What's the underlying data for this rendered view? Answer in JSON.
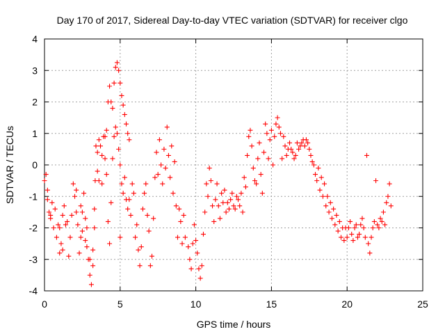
{
  "chart_data": {
    "type": "scatter",
    "title": "Day 170 of 2017, Sidereal Day-to-day VTEC variation (SDTVAR) for receiver clgo",
    "xlabel": "GPS time / hours",
    "ylabel": "SDTVAR / TECUs",
    "xlim": [
      0,
      25
    ],
    "ylim": [
      -4,
      4
    ],
    "x_ticks": [
      0,
      5,
      10,
      15,
      20,
      25
    ],
    "y_ticks": [
      -4,
      -3,
      -2,
      -1,
      0,
      1,
      2,
      3,
      4
    ],
    "grid": true,
    "marker": "+",
    "color": "#ff0000",
    "series": [
      {
        "name": "SDTVAR",
        "trace": [
          [
            0.0,
            -0.5
          ],
          [
            0.1,
            -0.3
          ],
          [
            0.2,
            -0.8
          ],
          [
            0.3,
            -1.5
          ],
          [
            0.4,
            -1.7
          ],
          [
            0.5,
            -1.2
          ],
          [
            0.7,
            -1.4
          ],
          [
            0.9,
            -1.9
          ],
          [
            1.0,
            -2.8
          ],
          [
            1.1,
            -2.5
          ],
          [
            1.2,
            -1.6
          ],
          [
            1.3,
            -1.3
          ],
          [
            1.5,
            -1.8
          ],
          [
            1.6,
            -2.9
          ],
          [
            1.8,
            -1.6
          ],
          [
            1.9,
            -0.6
          ],
          [
            2.0,
            -1.0
          ],
          [
            2.1,
            -1.5
          ],
          [
            2.2,
            -1.9
          ],
          [
            2.3,
            -2.8
          ],
          [
            2.4,
            -2.3
          ],
          [
            2.5,
            -1.5
          ],
          [
            2.6,
            -0.9
          ],
          [
            2.7,
            -1.7
          ],
          [
            2.8,
            -2.6
          ],
          [
            2.9,
            -3.0
          ],
          [
            3.0,
            -3.5
          ],
          [
            3.1,
            -3.8
          ],
          [
            3.2,
            -3.2
          ],
          [
            3.3,
            -2.0
          ],
          [
            3.35,
            -0.5
          ],
          [
            3.4,
            0.6
          ],
          [
            3.5,
            0.4
          ],
          [
            3.6,
            -0.5
          ],
          [
            3.7,
            0.6
          ],
          [
            3.8,
            -0.6
          ],
          [
            3.9,
            0.9
          ],
          [
            4.0,
            0.2
          ],
          [
            4.1,
            1.1
          ],
          [
            4.2,
            2.0
          ],
          [
            4.3,
            2.5
          ],
          [
            4.4,
            2.0
          ],
          [
            4.5,
            1.8
          ],
          [
            4.6,
            2.6
          ],
          [
            4.7,
            3.1
          ],
          [
            4.8,
            3.25
          ],
          [
            4.9,
            3.0
          ],
          [
            5.0,
            2.6
          ],
          [
            5.1,
            2.2
          ],
          [
            5.2,
            1.9
          ],
          [
            5.3,
            1.6
          ],
          [
            5.4,
            1.3
          ],
          [
            5.5,
            1.0
          ],
          [
            5.6,
            0.8
          ]
        ],
        "scatter": [
          [
            0.2,
            -1.1
          ],
          [
            0.4,
            -1.6
          ],
          [
            0.6,
            -2.0
          ],
          [
            0.8,
            -2.3
          ],
          [
            1.0,
            -2.0
          ],
          [
            1.2,
            -2.7
          ],
          [
            1.4,
            -1.9
          ],
          [
            1.7,
            -2.3
          ],
          [
            2.1,
            -0.8
          ],
          [
            2.4,
            -1.3
          ],
          [
            2.5,
            -2.1
          ],
          [
            2.7,
            -2.4
          ],
          [
            2.8,
            -2.0
          ],
          [
            3.0,
            -3.0
          ],
          [
            3.2,
            -2.7
          ],
          [
            3.3,
            -1.4
          ],
          [
            3.5,
            -0.2
          ],
          [
            3.6,
            0.8
          ],
          [
            3.8,
            0.3
          ],
          [
            4.0,
            0.9
          ],
          [
            4.1,
            -0.3
          ],
          [
            4.2,
            -1.8
          ],
          [
            4.3,
            -2.5
          ],
          [
            4.4,
            -1.2
          ],
          [
            4.5,
            0.2
          ],
          [
            4.6,
            0.9
          ],
          [
            4.7,
            1.2
          ],
          [
            4.8,
            1.0
          ],
          [
            4.9,
            0.5
          ],
          [
            5.0,
            0.0
          ],
          [
            5.0,
            -2.3
          ],
          [
            5.1,
            -0.6
          ],
          [
            5.2,
            -0.9
          ],
          [
            5.3,
            -0.4
          ],
          [
            5.4,
            -1.1
          ],
          [
            5.5,
            -1.4
          ],
          [
            5.6,
            -1.1
          ],
          [
            5.7,
            -1.6
          ],
          [
            5.8,
            -0.6
          ],
          [
            5.9,
            -0.9
          ],
          [
            6.0,
            -2.3
          ],
          [
            6.1,
            -1.9
          ],
          [
            6.2,
            -2.7
          ],
          [
            6.3,
            -3.2
          ],
          [
            6.4,
            -2.6
          ],
          [
            6.5,
            -1.4
          ],
          [
            6.6,
            -0.9
          ],
          [
            6.7,
            -0.6
          ],
          [
            6.8,
            -1.6
          ],
          [
            6.9,
            -2.1
          ],
          [
            7.0,
            -3.2
          ],
          [
            7.1,
            -2.9
          ],
          [
            7.2,
            -1.7
          ],
          [
            7.3,
            -0.4
          ],
          [
            7.4,
            0.4
          ],
          [
            7.5,
            -0.3
          ],
          [
            7.6,
            0.8
          ],
          [
            7.7,
            0.0
          ],
          [
            7.8,
            -0.6
          ],
          [
            7.9,
            0.5
          ],
          [
            8.0,
            -0.1
          ],
          [
            8.1,
            1.2
          ],
          [
            8.2,
            0.3
          ],
          [
            8.3,
            -0.4
          ],
          [
            8.4,
            0.6
          ],
          [
            8.5,
            -0.9
          ],
          [
            8.6,
            0.1
          ],
          [
            8.7,
            -1.3
          ],
          [
            8.8,
            -2.3
          ],
          [
            8.9,
            -1.4
          ],
          [
            9.0,
            -1.8
          ],
          [
            9.1,
            -2.5
          ],
          [
            9.2,
            -1.6
          ],
          [
            9.3,
            -2.3
          ],
          [
            9.5,
            -2.6
          ],
          [
            9.6,
            -3.0
          ],
          [
            9.7,
            -3.3
          ],
          [
            9.8,
            -2.5
          ],
          [
            9.9,
            -1.9
          ],
          [
            10.0,
            -2.4
          ],
          [
            10.1,
            -2.8
          ],
          [
            10.2,
            -3.3
          ],
          [
            10.3,
            -3.6
          ],
          [
            10.4,
            -3.2
          ],
          [
            10.5,
            -2.2
          ],
          [
            10.6,
            -1.5
          ],
          [
            10.7,
            -0.6
          ],
          [
            10.8,
            -1.0
          ],
          [
            10.9,
            -0.1
          ],
          [
            11.0,
            -0.5
          ],
          [
            11.1,
            -1.3
          ],
          [
            11.2,
            -1.8
          ],
          [
            11.3,
            -1.1
          ],
          [
            11.4,
            -0.6
          ],
          [
            11.5,
            -1.3
          ],
          [
            11.6,
            -1.7
          ],
          [
            11.7,
            -0.9
          ],
          [
            11.8,
            -1.2
          ],
          [
            11.9,
            -0.8
          ],
          [
            12.0,
            -1.5
          ],
          [
            12.1,
            -1.2
          ],
          [
            12.2,
            -1.4
          ],
          [
            12.3,
            -1.1
          ],
          [
            12.4,
            -0.9
          ],
          [
            12.5,
            -1.3
          ],
          [
            12.6,
            -1.4
          ],
          [
            12.7,
            -1.0
          ],
          [
            12.8,
            -1.1
          ],
          [
            12.9,
            -1.3
          ],
          [
            13.0,
            -0.9
          ],
          [
            13.1,
            -1.5
          ],
          [
            13.2,
            -0.4
          ],
          [
            13.3,
            -0.7
          ],
          [
            13.4,
            0.3
          ],
          [
            13.5,
            0.9
          ],
          [
            13.6,
            1.1
          ],
          [
            13.7,
            0.6
          ],
          [
            13.8,
            -0.1
          ],
          [
            13.9,
            -0.5
          ],
          [
            14.0,
            -0.6
          ],
          [
            14.1,
            0.2
          ],
          [
            14.2,
            0.7
          ],
          [
            14.3,
            -0.3
          ],
          [
            14.4,
            -0.9
          ],
          [
            14.5,
            0.4
          ],
          [
            14.6,
            1.3
          ],
          [
            14.7,
            1.0
          ],
          [
            14.8,
            0.2
          ],
          [
            14.9,
            0.8
          ],
          [
            15.0,
            1.1
          ],
          [
            15.1,
            0.0
          ],
          [
            15.2,
            0.9
          ],
          [
            15.3,
            1.3
          ],
          [
            15.4,
            1.5
          ],
          [
            15.5,
            1.2
          ],
          [
            15.6,
            1.0
          ],
          [
            15.7,
            0.2
          ],
          [
            15.8,
            0.9
          ],
          [
            15.9,
            0.6
          ],
          [
            16.0,
            0.3
          ],
          [
            16.1,
            0.5
          ],
          [
            16.2,
            0.7
          ],
          [
            16.3,
            0.5
          ],
          [
            16.4,
            0.4
          ],
          [
            16.5,
            0.2
          ],
          [
            16.6,
            0.3
          ],
          [
            16.7,
            0.7
          ],
          [
            16.8,
            0.5
          ],
          [
            16.9,
            0.6
          ],
          [
            17.0,
            0.7
          ],
          [
            17.1,
            0.8
          ],
          [
            17.2,
            0.6
          ],
          [
            17.3,
            0.8
          ],
          [
            17.4,
            0.7
          ],
          [
            17.5,
            0.5
          ],
          [
            17.6,
            0.3
          ],
          [
            17.7,
            0.1
          ],
          [
            17.8,
            0.0
          ],
          [
            17.9,
            -0.3
          ],
          [
            18.0,
            -0.5
          ],
          [
            18.1,
            -0.1
          ],
          [
            18.2,
            -0.8
          ],
          [
            18.3,
            -0.4
          ],
          [
            18.4,
            -1.0
          ],
          [
            18.5,
            -0.6
          ],
          [
            18.6,
            -1.3
          ],
          [
            18.7,
            -1.0
          ],
          [
            18.8,
            -1.5
          ],
          [
            18.9,
            -1.2
          ],
          [
            19.0,
            -1.7
          ],
          [
            19.1,
            -1.4
          ],
          [
            19.2,
            -1.9
          ],
          [
            19.3,
            -1.6
          ],
          [
            19.4,
            -2.1
          ],
          [
            19.5,
            -1.8
          ],
          [
            19.6,
            -2.3
          ],
          [
            19.7,
            -2.0
          ],
          [
            19.8,
            -2.4
          ],
          [
            19.9,
            -2.0
          ],
          [
            20.0,
            -2.3
          ],
          [
            20.1,
            -2.0
          ],
          [
            20.2,
            -1.8
          ],
          [
            20.3,
            -2.2
          ],
          [
            20.4,
            -2.4
          ],
          [
            20.5,
            -2.0
          ],
          [
            20.6,
            -1.9
          ],
          [
            20.7,
            -2.3
          ],
          [
            20.8,
            -2.2
          ],
          [
            20.9,
            -1.9
          ],
          [
            21.0,
            -1.7
          ],
          [
            21.1,
            -2.0
          ],
          [
            21.2,
            -2.3
          ],
          [
            21.3,
            0.3
          ],
          [
            21.4,
            -2.5
          ],
          [
            21.5,
            -2.8
          ],
          [
            21.6,
            -2.3
          ],
          [
            21.7,
            -2.0
          ],
          [
            21.8,
            -1.8
          ],
          [
            21.9,
            -0.5
          ],
          [
            22.0,
            -1.9
          ],
          [
            22.1,
            -2.0
          ],
          [
            22.2,
            -1.7
          ],
          [
            22.3,
            -1.8
          ],
          [
            22.4,
            -1.5
          ],
          [
            22.5,
            -1.9
          ],
          [
            22.6,
            -1.2
          ],
          [
            22.7,
            -1.0
          ],
          [
            22.8,
            -0.6
          ],
          [
            22.9,
            -1.3
          ]
        ]
      }
    ]
  }
}
